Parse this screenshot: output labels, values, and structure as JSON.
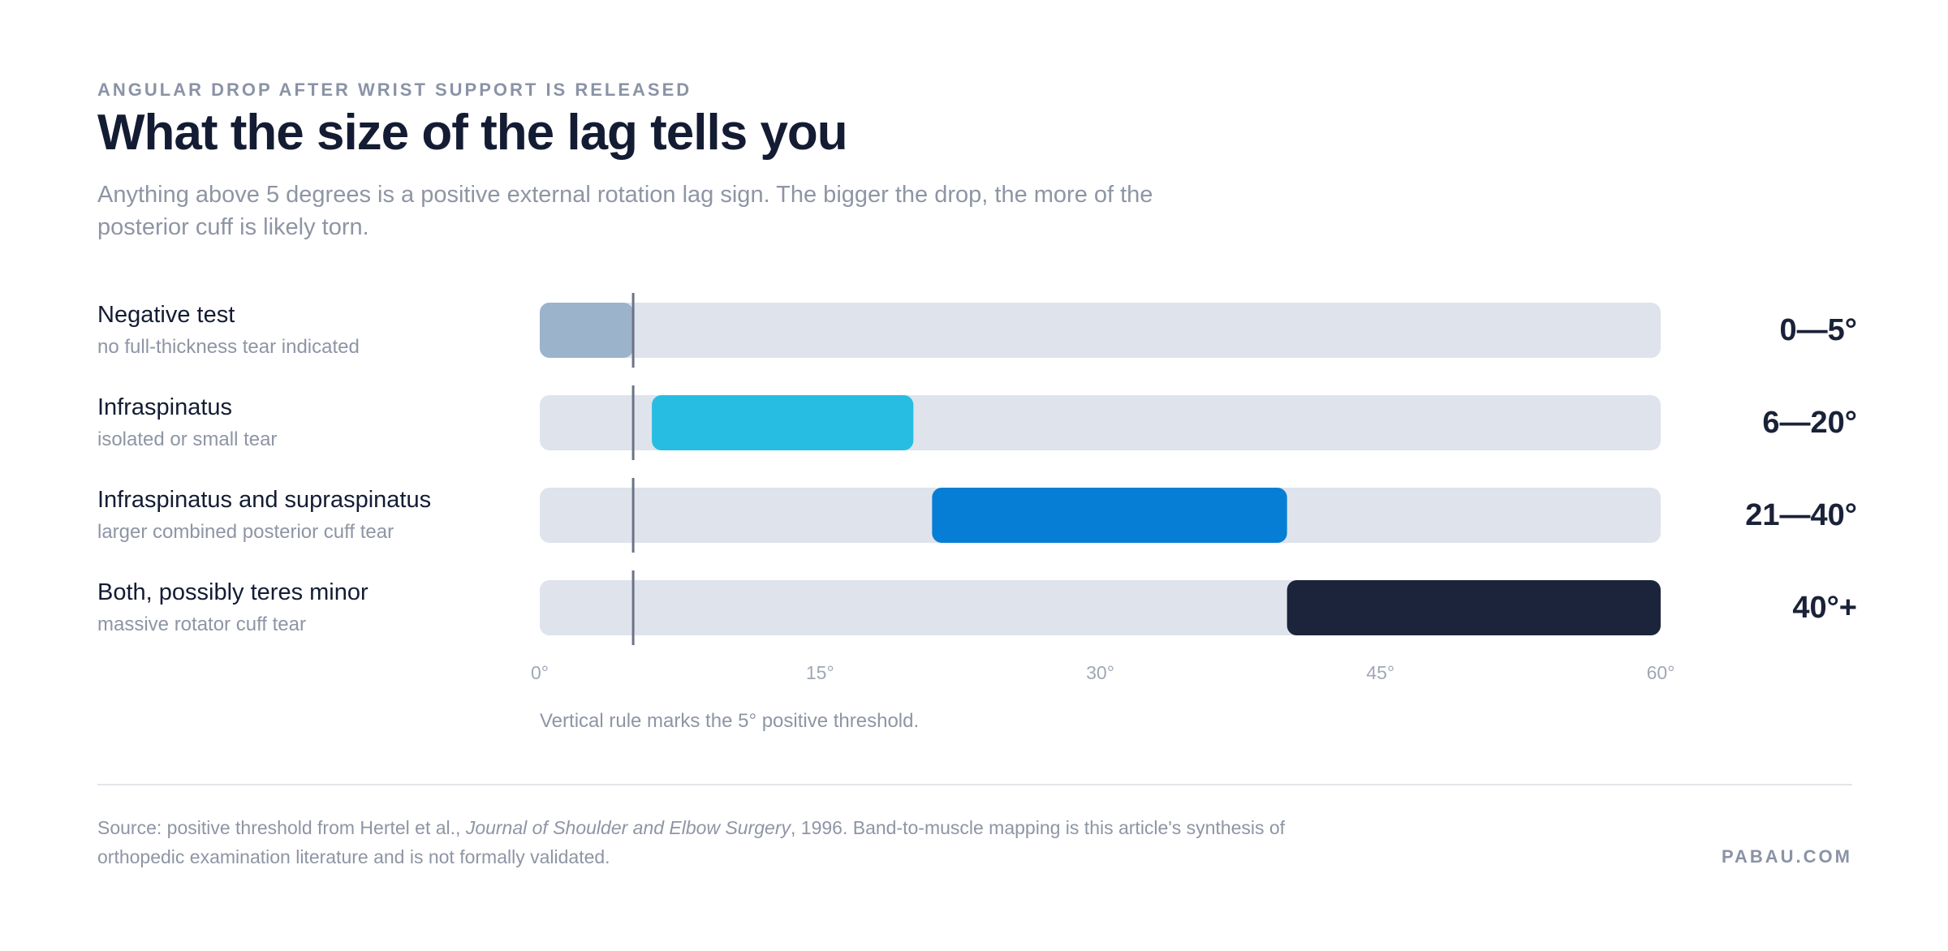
{
  "header": {
    "eyebrow": "ANGULAR DROP AFTER WRIST SUPPORT IS RELEASED",
    "title": "What the size of the lag tells you",
    "subtitle": "Anything above 5 degrees is a positive external rotation lag sign. The bigger the drop, the more of the posterior cuff is likely torn."
  },
  "rows": [
    {
      "title": "Negative test",
      "subtitle": "no full-thickness tear indicated",
      "range_label": "0—5°"
    },
    {
      "title": "Infraspinatus",
      "subtitle": "isolated or small tear",
      "range_label": "6—20°"
    },
    {
      "title": "Infraspinatus and supraspinatus",
      "subtitle": "larger combined posterior cuff tear",
      "range_label": "21—40°"
    },
    {
      "title": "Both, possibly teres minor",
      "subtitle": "massive rotator cuff tear",
      "range_label": "40°+"
    }
  ],
  "chart_data": {
    "type": "bar",
    "orientation": "horizontal-range",
    "categories": [
      "Negative test",
      "Infraspinatus",
      "Infraspinatus and supraspinatus",
      "Both, possibly teres minor"
    ],
    "ranges": [
      [
        0,
        5
      ],
      [
        6,
        20
      ],
      [
        21,
        40
      ],
      [
        40,
        60
      ]
    ],
    "colors": [
      "#9bb3cb",
      "#27bde2",
      "#067ed6",
      "#1b243a"
    ],
    "track_color": "#dfe3ec",
    "xlim": [
      0,
      60
    ],
    "x_ticks": [
      0,
      15,
      30,
      45,
      60
    ],
    "x_tick_labels": [
      "0°",
      "15°",
      "30°",
      "45°",
      "60°"
    ],
    "threshold": 5,
    "threshold_color": "#6b7384"
  },
  "note": "Vertical rule marks the 5° positive threshold.",
  "footer": {
    "source_prefix": "Source: positive threshold from Hertel et al., ",
    "source_journal": "Journal of Shoulder and Elbow Surgery",
    "source_suffix": ", 1996. Band-to-muscle mapping is this article's synthesis of orthopedic examination literature and is not formally validated.",
    "brand": "PABAU.COM"
  }
}
